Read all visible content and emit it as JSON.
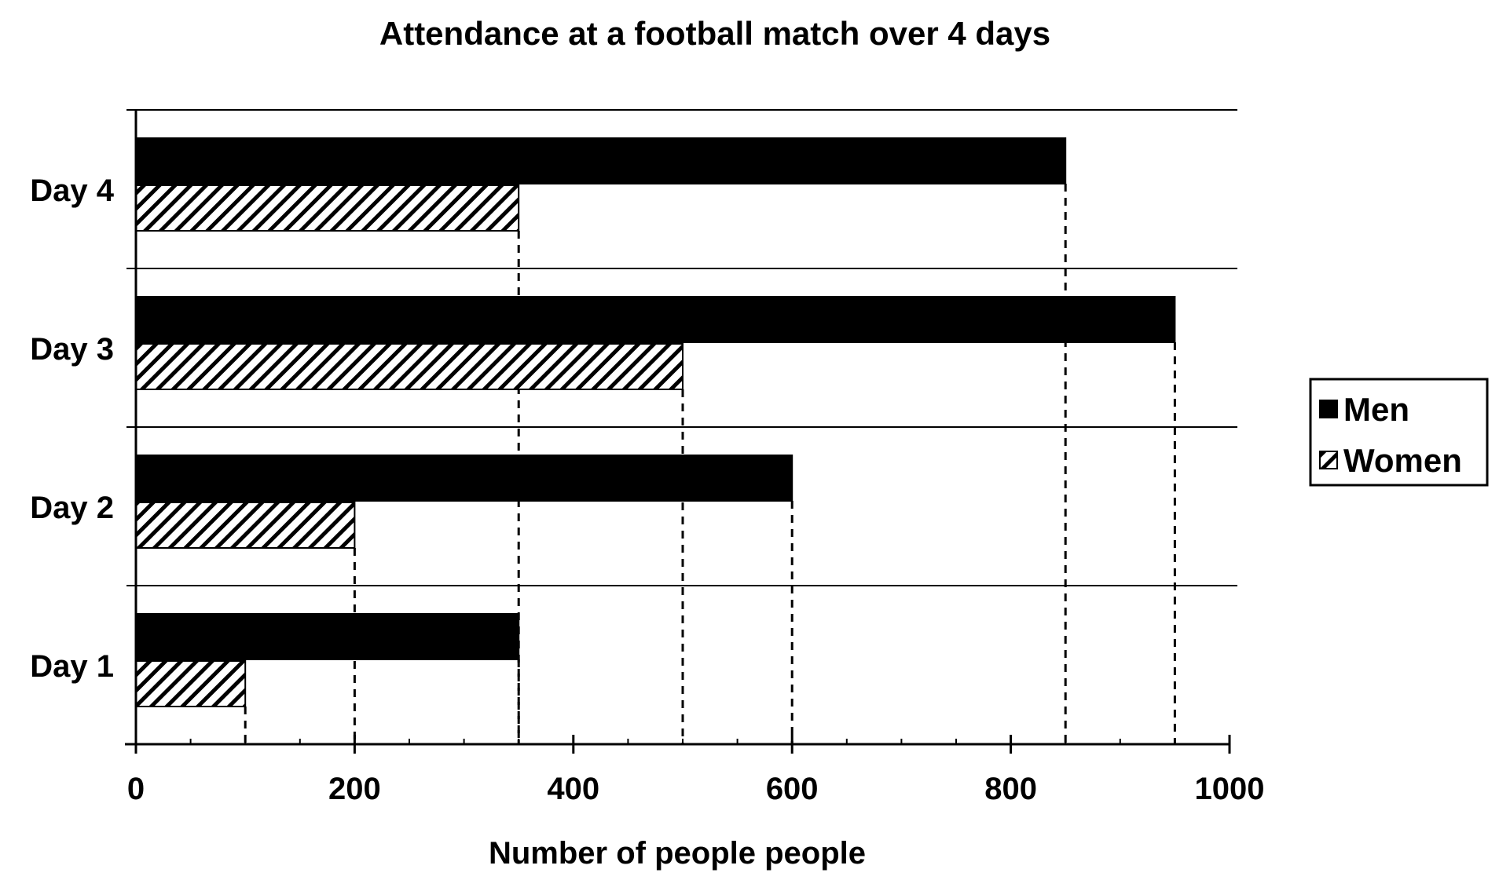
{
  "chart_data": {
    "type": "bar",
    "orientation": "horizontal",
    "title": "Attendance at a football match over 4 days",
    "xlabel": "Number of people people",
    "ylabel": "",
    "categories": [
      "Day 1",
      "Day 2",
      "Day 3",
      "Day 4"
    ],
    "series": [
      {
        "name": "Men",
        "values": [
          350,
          600,
          950,
          850
        ],
        "fill": "solid",
        "color": "#000000"
      },
      {
        "name": "Women",
        "values": [
          100,
          200,
          500,
          350
        ],
        "fill": "hatched",
        "color": "#000000"
      }
    ],
    "xlim": [
      0,
      1000
    ],
    "xticks": [
      "0",
      "200",
      "400",
      "600",
      "800",
      "1000"
    ],
    "grid": "horizontal category separators",
    "value_guides": "dashed drop lines from bar ends to x-axis",
    "legend_position": "right"
  }
}
